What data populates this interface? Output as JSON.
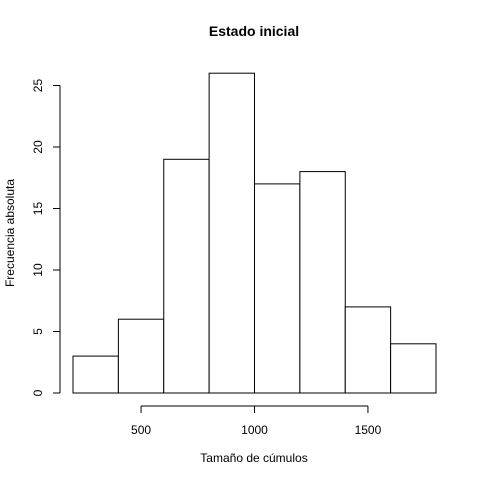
{
  "chart_data": {
    "type": "bar",
    "title": "Estado inicial",
    "xlabel": "Tamaño de cúmulos",
    "ylabel": "Frecuencia absoluta",
    "bins": [
      {
        "start": 200,
        "end": 400,
        "count": 3
      },
      {
        "start": 400,
        "end": 600,
        "count": 6
      },
      {
        "start": 600,
        "end": 800,
        "count": 19
      },
      {
        "start": 800,
        "end": 1000,
        "count": 26
      },
      {
        "start": 1000,
        "end": 1200,
        "count": 17
      },
      {
        "start": 1200,
        "end": 1400,
        "count": 18
      },
      {
        "start": 1400,
        "end": 1600,
        "count": 7
      },
      {
        "start": 1600,
        "end": 1800,
        "count": 4
      }
    ],
    "xlim": [
      200,
      1800
    ],
    "ylim": [
      0,
      26
    ],
    "xticks": [
      500,
      1000,
      1500
    ],
    "yticks": [
      0,
      5,
      10,
      15,
      20,
      25
    ],
    "grid": false,
    "colors": {
      "bar_fill": "#ffffff",
      "bar_stroke": "#000000"
    }
  }
}
